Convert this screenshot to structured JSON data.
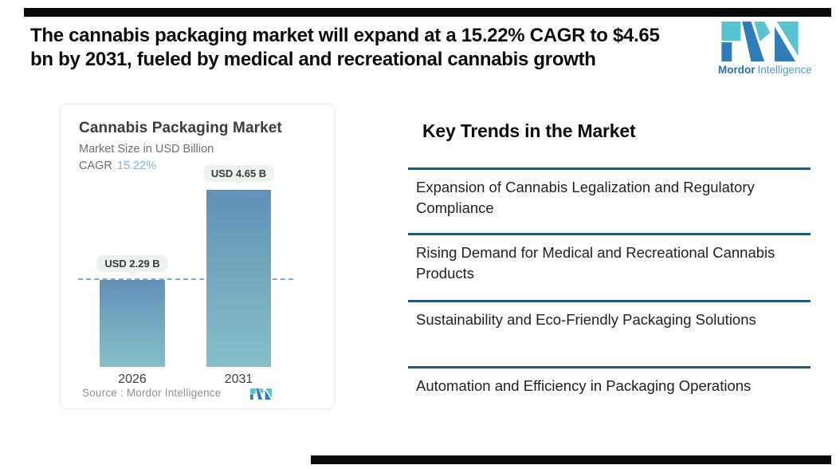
{
  "decor": {
    "top_bar_color": "#0a0a0a",
    "bottom_bar_color": "#0a0a0a"
  },
  "header": {
    "title_line1": "The cannabis packaging market will expand at a 15.22% CAGR to $4.65",
    "title_line2": "bn by 2031, fueled by medical and recreational cannabis growth"
  },
  "brand": {
    "name_bold": "Mordor",
    "name_regular": "Intelligence",
    "blue": "#2f7cb7",
    "teal": "#57c4cf"
  },
  "chart_data": {
    "type": "bar",
    "title": "Cannabis Packaging Market",
    "subtitle": "Market Size in USD Billion",
    "cagr_label": "CAGR",
    "cagr_value": "15.22%",
    "categories": [
      "2026",
      "2031"
    ],
    "values": [
      2.29,
      4.65
    ],
    "value_labels": [
      "USD 2.29 B",
      "USD 4.65 B"
    ],
    "unit": "USD Billion",
    "ylim": [
      0,
      4.65
    ],
    "dashed_line_y": 2.29,
    "dashed_line_color": "#7fa9cf",
    "bar_gradient_top": "#6390b6",
    "bar_gradient_bottom": "#87c0c8",
    "value_pill_bg": "#edf1f1",
    "source_label": "Source :  Mordor Intelligence",
    "legend": "none",
    "grid": "off"
  },
  "trends": {
    "heading": "Key Trends in the Market",
    "rule_color": "#1d5a7d",
    "items": [
      "Expansion of Cannabis Legalization and Regulatory Compliance",
      "Rising Demand for Medical and Recreational Cannabis Products",
      "Sustainability and Eco-Friendly Packaging Solutions",
      "Automation and Efficiency in Packaging Operations"
    ]
  }
}
